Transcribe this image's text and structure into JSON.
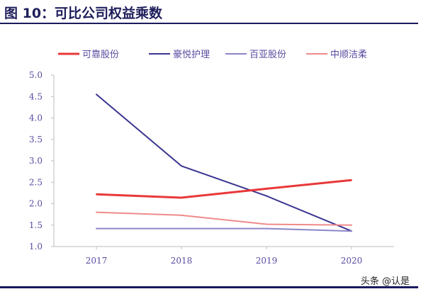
{
  "header": {
    "title": "图 10：可比公司权益乘数"
  },
  "watermark": "头条 @认是",
  "chart_data": {
    "type": "line",
    "title": "图 10：可比公司权益乘数",
    "xlabel": "",
    "ylabel": "",
    "categories": [
      "2017",
      "2018",
      "2019",
      "2020"
    ],
    "ylim": [
      1.0,
      5.0
    ],
    "y_ticks": [
      "1.0",
      "1.5",
      "2.0",
      "2.5",
      "3.0",
      "3.5",
      "4.0",
      "4.5",
      "5.0"
    ],
    "grid": false,
    "legend_position": "top",
    "series": [
      {
        "name": "可靠股份",
        "color": "#e8393a",
        "values": [
          2.22,
          2.14,
          2.35,
          2.55
        ]
      },
      {
        "name": "豪悦护理",
        "color": "#3a3590",
        "values": [
          4.55,
          2.88,
          2.18,
          1.36
        ]
      },
      {
        "name": "百亚股份",
        "color": "#8c86c8",
        "values": [
          1.42,
          1.42,
          1.42,
          1.36
        ]
      },
      {
        "name": "中顺洁柔",
        "color": "#f08a8a",
        "values": [
          1.8,
          1.73,
          1.52,
          1.5
        ]
      }
    ]
  }
}
